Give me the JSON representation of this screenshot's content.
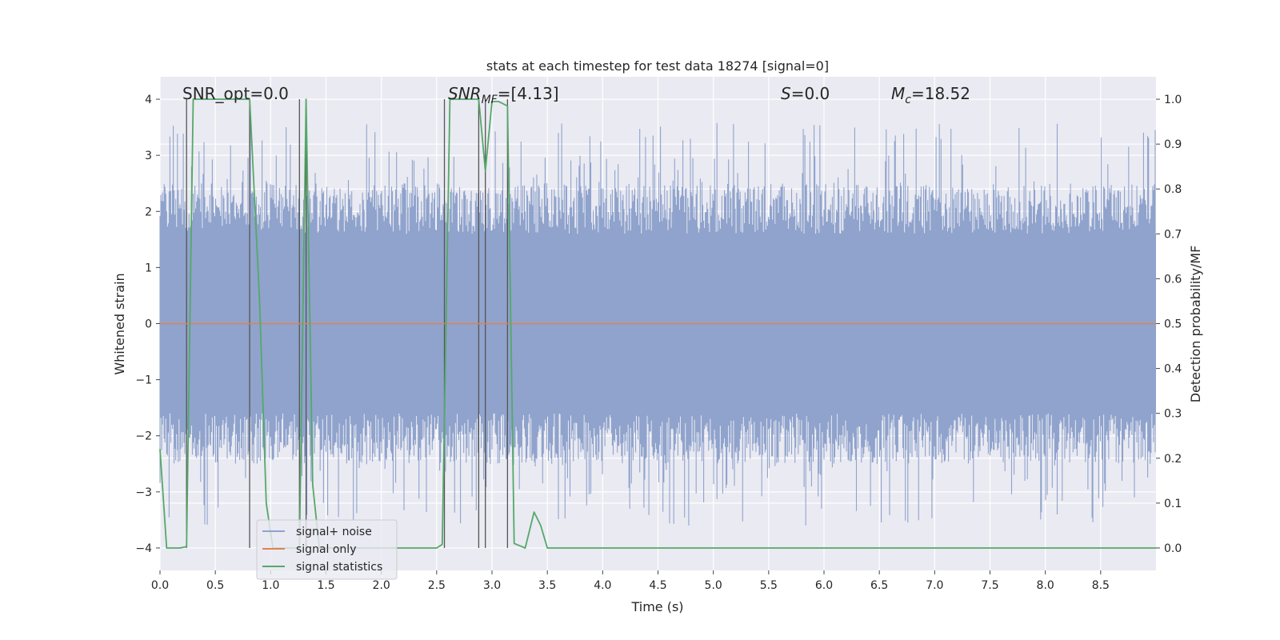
{
  "chart_data": {
    "type": "line",
    "title": "stats at each timestep for test data 18274 [signal=0]",
    "xlabel": "Time (s)",
    "ylabel_left": "Whitened strain",
    "ylabel_right": "Detection probability/MF",
    "xlim": [
      0.0,
      9.0
    ],
    "ylim_left": [
      -4.4,
      4.4
    ],
    "ylim_right": [
      -0.05,
      1.05
    ],
    "x_ticks": [
      "0.0",
      "0.5",
      "1.0",
      "1.5",
      "2.0",
      "2.5",
      "3.0",
      "3.5",
      "4.0",
      "4.5",
      "5.0",
      "5.5",
      "6.0",
      "6.5",
      "7.0",
      "7.5",
      "8.0",
      "8.5"
    ],
    "y_ticks_left": [
      "−4",
      "−3",
      "−2",
      "−1",
      "0",
      "1",
      "2",
      "3",
      "4"
    ],
    "y_ticks_right": [
      "0.0",
      "0.1",
      "0.2",
      "0.3",
      "0.4",
      "0.5",
      "0.6",
      "0.7",
      "0.8",
      "0.9",
      "1.0"
    ],
    "grid": true,
    "legend_position": "lower-left",
    "annotations": {
      "snr_opt": "SNR_opt=0.0",
      "snr_mf_base": "SNR",
      "snr_mf_sub": "MF",
      "snr_mf_value": "=[4.13]",
      "s_var": "S",
      "s_value": "=0.0",
      "mc_base": "M",
      "mc_sub": "c",
      "mc_value": "=18.52"
    },
    "series": [
      {
        "name": "signal+ noise",
        "axis": "left",
        "color": "#8fa3cc",
        "description_values": "whitened noise, approximately uniform band between about -1.6 and +1.6 with spikes up to about 3.5 and down to about -4.0",
        "band_envelope": [
          -1.6,
          1.6
        ]
      },
      {
        "name": "signal only",
        "axis": "left",
        "color": "#dd8452",
        "x": [
          0.0,
          9.0
        ],
        "y": [
          0.0,
          0.0
        ]
      },
      {
        "name": "signal statistics",
        "axis": "right",
        "color": "#55a868",
        "x": [
          0.0,
          0.06,
          0.18,
          0.24,
          0.3,
          0.45,
          0.6,
          0.72,
          0.81,
          0.9,
          0.96,
          1.02,
          1.1,
          1.2,
          1.26,
          1.32,
          1.38,
          1.44,
          1.55,
          2.0,
          2.5,
          2.55,
          2.62,
          2.75,
          2.88,
          2.94,
          3.0,
          3.06,
          3.14,
          3.2,
          3.3,
          3.38,
          3.44,
          3.5,
          4.0,
          5.0,
          6.0,
          7.0,
          8.0,
          9.0
        ],
        "y": [
          0.22,
          0.0,
          0.0,
          0.003,
          1.0,
          1.0,
          1.0,
          1.0,
          1.0,
          0.55,
          0.1,
          0.0,
          0.0,
          0.0,
          0.0,
          1.0,
          0.14,
          0.0,
          0.0,
          0.0,
          0.0,
          0.008,
          1.0,
          1.0,
          1.0,
          0.84,
          0.995,
          0.995,
          0.985,
          0.01,
          0.0,
          0.08,
          0.05,
          0.0,
          0.0,
          0.0,
          0.0,
          0.0,
          0.0,
          0.0
        ]
      }
    ],
    "vertical_markers_x": [
      0.24,
      0.81,
      1.26,
      1.32,
      2.57,
      2.88,
      2.94,
      3.14
    ]
  }
}
